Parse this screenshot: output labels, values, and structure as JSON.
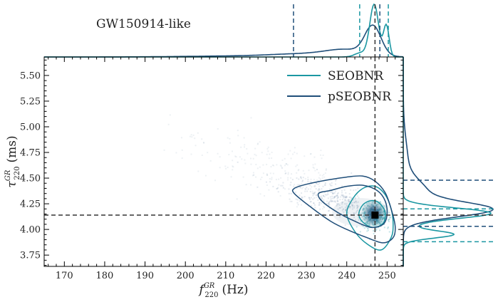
{
  "chart_data": {
    "type": "scatter",
    "title": "GW150914-like",
    "xlabel": "f_{220}^{GR} (Hz)",
    "xlabel_main": "f",
    "xlabel_sub": "220",
    "xlabel_sup": "GR",
    "xlabel_unit": "(Hz)",
    "ylabel": "τ_{220}^{GR} (ms)",
    "ylabel_main": "τ",
    "ylabel_sub": "220",
    "ylabel_sup": "GR",
    "ylabel_unit": "(ms)",
    "xlim": [
      165,
      254
    ],
    "ylim": [
      3.64,
      5.68
    ],
    "xticks": [
      170,
      180,
      190,
      200,
      210,
      220,
      230,
      240,
      250
    ],
    "yticks": [
      3.75,
      4.0,
      4.25,
      4.5,
      4.75,
      5.0,
      5.25,
      5.5
    ],
    "xtick_labels": [
      "170",
      "180",
      "190",
      "200",
      "210",
      "220",
      "230",
      "240",
      "250"
    ],
    "ytick_labels": [
      "3.75",
      "4.00",
      "4.25",
      "4.50",
      "4.75",
      "5.00",
      "5.25",
      "5.50"
    ],
    "legend_position": "top-right",
    "injection": {
      "f": 247.0,
      "tau": 4.14
    },
    "colors": {
      "seobnr": "#1b97a2",
      "pseobnr": "#1f4e79",
      "injection": "#000000",
      "reference": "#333333"
    },
    "series": [
      {
        "name": "SEOBNR",
        "contour_90": [
          [
            240.0,
            4.15
          ],
          [
            241.5,
            4.3
          ],
          [
            244.0,
            4.4
          ],
          [
            247.0,
            4.42
          ],
          [
            249.5,
            4.34
          ],
          [
            251.0,
            4.2
          ],
          [
            251.5,
            4.05
          ],
          [
            251.0,
            3.92
          ],
          [
            248.5,
            3.8
          ],
          [
            245.0,
            3.86
          ],
          [
            242.0,
            3.98
          ],
          [
            240.0,
            4.15
          ]
        ],
        "contour_50": [
          [
            243.0,
            4.15
          ],
          [
            244.0,
            4.24
          ],
          [
            246.0,
            4.28
          ],
          [
            248.0,
            4.26
          ],
          [
            249.5,
            4.17
          ],
          [
            249.0,
            4.06
          ],
          [
            246.5,
            4.02
          ],
          [
            244.0,
            4.07
          ],
          [
            243.0,
            4.15
          ]
        ],
        "marginal_f_interval": [
          243.2,
          250.3
        ],
        "marginal_tau_interval": [
          3.88,
          4.2
        ]
      },
      {
        "name": "pSEOBNR",
        "contour_90": [
          [
            227.0,
            4.4
          ],
          [
            230.0,
            4.44
          ],
          [
            235.0,
            4.48
          ],
          [
            240.0,
            4.51
          ],
          [
            244.0,
            4.52
          ],
          [
            247.0,
            4.47
          ],
          [
            249.5,
            4.36
          ],
          [
            251.0,
            4.2
          ],
          [
            252.0,
            4.03
          ],
          [
            251.5,
            3.92
          ],
          [
            249.0,
            3.87
          ],
          [
            245.0,
            3.92
          ],
          [
            240.0,
            4.0
          ],
          [
            236.0,
            4.08
          ],
          [
            231.0,
            4.22
          ],
          [
            227.0,
            4.35
          ],
          [
            227.0,
            4.4
          ]
        ],
        "contour_50": [
          [
            233.0,
            4.35
          ],
          [
            236.0,
            4.38
          ],
          [
            240.0,
            4.42
          ],
          [
            244.0,
            4.43
          ],
          [
            247.5,
            4.38
          ],
          [
            249.5,
            4.28
          ],
          [
            250.0,
            4.15
          ],
          [
            249.0,
            4.05
          ],
          [
            246.0,
            4.02
          ],
          [
            242.0,
            4.08
          ],
          [
            238.0,
            4.16
          ],
          [
            234.0,
            4.27
          ],
          [
            233.0,
            4.35
          ]
        ],
        "marginal_f_interval": [
          226.8,
          248.2
        ],
        "marginal_tau_interval": [
          4.03,
          4.48
        ]
      }
    ]
  }
}
